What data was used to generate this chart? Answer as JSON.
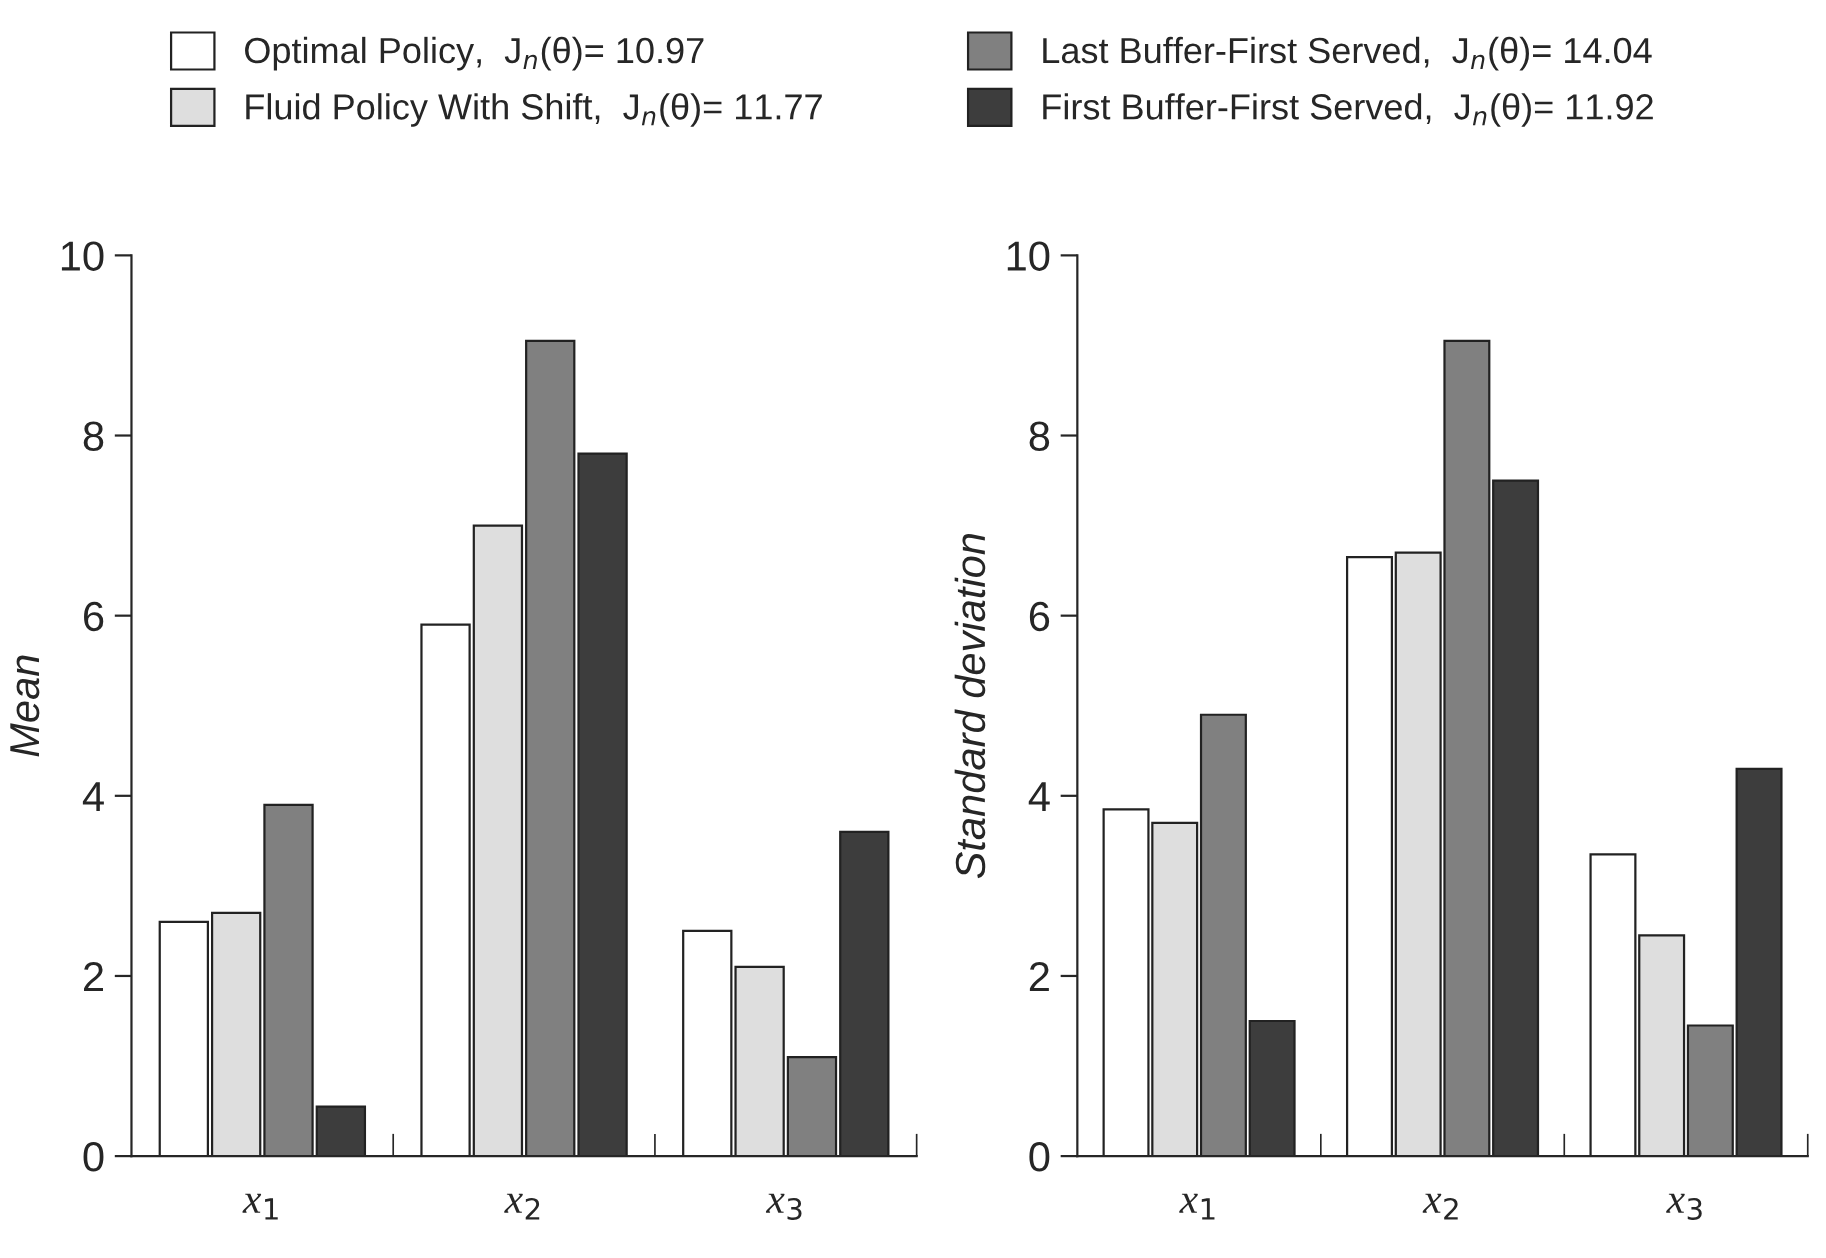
{
  "chart_data": [
    {
      "type": "bar",
      "categories": [
        "x$_{1}$",
        "x$_{2}$",
        "x$_{3}$"
      ],
      "ylabel": "Mean",
      "ylim": [
        0,
        10
      ],
      "yticks": [
        0,
        2,
        4,
        6,
        8,
        10
      ],
      "grid": false,
      "legend": "top",
      "series": [
        {
          "name": "Optimal Policy,  J$_{n}$(θ)= 10.97",
          "color": "#ffffff",
          "values": [
            2.6,
            5.9,
            2.5
          ]
        },
        {
          "name": "Fluid Policy With Shift,  J$_{n}$(θ)= 11.77",
          "color": "#dedede",
          "values": [
            2.7,
            7.0,
            2.1
          ]
        },
        {
          "name": "Last Buffer-First Served,  J$_{n}$(θ)= 14.04",
          "color": "#808080",
          "values": [
            3.9,
            9.05,
            1.1
          ]
        },
        {
          "name": "First Buffer-First Served,  J$_{n}$(θ)= 11.92",
          "color": "#3d3d3d",
          "values": [
            0.55,
            7.8,
            3.6
          ]
        }
      ]
    },
    {
      "type": "bar",
      "categories": [
        "x$_{1}$",
        "x$_{2}$",
        "x$_{3}$"
      ],
      "ylabel": "Standard deviation",
      "ylim": [
        0,
        10
      ],
      "yticks": [
        0,
        2,
        4,
        6,
        8,
        10
      ],
      "grid": false,
      "series": [
        {
          "color": "#ffffff",
          "values": [
            3.85,
            6.65,
            3.35
          ]
        },
        {
          "color": "#dedede",
          "values": [
            3.7,
            6.7,
            2.45
          ]
        },
        {
          "color": "#808080",
          "values": [
            4.9,
            9.05,
            1.45
          ]
        },
        {
          "color": "#3d3d3d",
          "values": [
            1.5,
            7.5,
            4.3
          ]
        }
      ]
    }
  ]
}
